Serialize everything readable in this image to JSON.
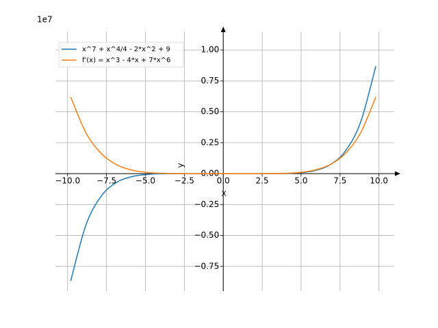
{
  "chart_data": {
    "type": "line",
    "offset_label": "1e7",
    "xlabel": "x",
    "ylabel": "y",
    "x": [
      -9.8,
      -8.82,
      -7.84,
      -6.86,
      -5.88,
      -4.9,
      -3.92,
      -2.94,
      -1.96,
      -0.98,
      0,
      0.98,
      1.96,
      2.94,
      3.92,
      4.9,
      5.88,
      6.86,
      7.84,
      8.82,
      9.8
    ],
    "series": [
      {
        "name": "x^7 + x^4/4 - 2*x^2 + 9",
        "color": "#1f77b4",
        "values": [
          -0.8679,
          -0.4151,
          -0.182,
          -0.0714,
          -0.0243,
          -0.0068,
          -0.0014,
          -0.0002,
          0,
          0,
          0,
          0,
          0,
          0.0002,
          0.0014,
          0.0068,
          0.0243,
          0.0715,
          0.1822,
          0.4154,
          0.8684
        ]
      },
      {
        "name": "f'(x) = x^3 - 4*x + 7*x^6",
        "color": "#ff7f0e",
        "values": [
          0.62,
          0.3295,
          0.1625,
          0.0729,
          0.0289,
          0.0097,
          0.0025,
          0.0005,
          0,
          0,
          0,
          0,
          0,
          0.0005,
          0.0025,
          0.0097,
          0.0289,
          0.073,
          0.1626,
          0.3296,
          0.6202
        ]
      }
    ],
    "xlim": [
      -10.78,
      10.98
    ],
    "ylim": [
      -0.95,
      1.15
    ],
    "xticks": [
      {
        "value": -10,
        "label": "−10.0"
      },
      {
        "value": -7.5,
        "label": "−7.5"
      },
      {
        "value": -5,
        "label": "−5.0"
      },
      {
        "value": -2.5,
        "label": "−2.5"
      },
      {
        "value": 0,
        "label": "0.0"
      },
      2.5,
      {
        "value": 5,
        "label": "5.0"
      },
      7.5,
      {
        "value": 10,
        "label": "10.0"
      }
    ],
    "yticks": [
      {
        "value": -0.75,
        "label": "−0.75"
      },
      {
        "value": -0.5,
        "label": "−0.50"
      },
      {
        "value": -0.25,
        "label": "−0.25"
      },
      {
        "value": 0,
        "label": "0.00"
      },
      0.25,
      {
        "value": 0.5,
        "label": "0.50"
      },
      0.75,
      {
        "value": 1,
        "label": "1.00"
      }
    ],
    "grid": true,
    "legend": "upper left"
  }
}
